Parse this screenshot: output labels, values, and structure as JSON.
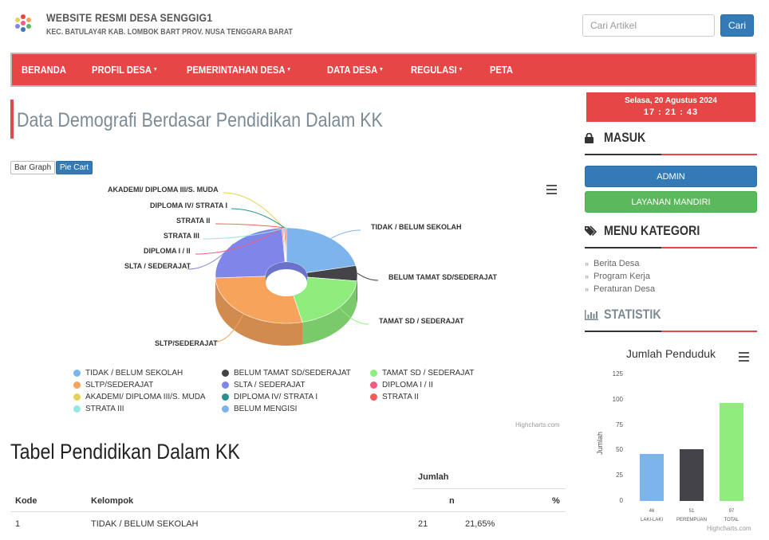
{
  "header": {
    "title": "WEBSITE RESMI DESA SENGGIG1",
    "subtitle": "KEC. BATULAY4R KAB. LOMBOK BART PROV. NUSA TENGGARA BARAT",
    "search_placeholder": "Cari Artikel",
    "search_button": "Cari"
  },
  "nav": {
    "items": [
      {
        "label": "BERANDA",
        "caret": ""
      },
      {
        "label": "PROFIL DESA",
        "caret": "▼"
      },
      {
        "label": "PEMERINTAHAN DESA",
        "caret": "▼"
      },
      {
        "label": "DATA DESA",
        "caret": "▼"
      },
      {
        "label": "REGULASI",
        "caret": "▼"
      },
      {
        "label": "PETA",
        "caret": ""
      }
    ]
  },
  "main": {
    "page_title": "Data Demografi Berdasar Pendidikan Dalam KK",
    "buttons": {
      "bar": "Bar Graph",
      "pie": "Pie Cart"
    },
    "credit": "Highcharts.com",
    "table_title": "Tabel Pendidikan Dalam KK",
    "table": {
      "group_header": "Jumlah",
      "headers": [
        "Kode",
        "Kelompok",
        "n",
        "%"
      ],
      "rows": [
        {
          "kode": "1",
          "kelompok": "TIDAK / BELUM SEKOLAH",
          "n": "21",
          "pct": "21,65%"
        }
      ]
    }
  },
  "chart_data": [
    {
      "type": "pie",
      "title": "",
      "series": [
        {
          "name": "TIDAK / BELUM SEKOLAH",
          "value": 21.65,
          "color": "#7cb5ec"
        },
        {
          "name": "BELUM TAMAT SD/SEDERAJAT",
          "value": 5.15,
          "color": "#434348"
        },
        {
          "name": "TAMAT SD / SEDERAJAT",
          "value": 19.59,
          "color": "#90ed7d"
        },
        {
          "name": "SLTP/SEDERAJAT",
          "value": 27.84,
          "color": "#f7a35c"
        },
        {
          "name": "SLTA / SEDERAJAT",
          "value": 24.74,
          "color": "#8085e9"
        },
        {
          "name": "DIPLOMA I / II",
          "value": 0.26,
          "color": "#f15c80"
        },
        {
          "name": "AKADEMI/ DIPLOMA III/S. MUDA",
          "value": 0.26,
          "color": "#e4d354"
        },
        {
          "name": "DIPLOMA IV/ STRATA I",
          "value": 0.26,
          "color": "#2b908f"
        },
        {
          "name": "STRATA II",
          "value": 0.26,
          "color": "#f45b5b"
        },
        {
          "name": "STRATA III",
          "value": 0.0,
          "color": "#91e8e1"
        },
        {
          "name": "BELUM MENGISI",
          "value": 0.0,
          "color": "#7cb5ec"
        }
      ],
      "legend": "bottom"
    },
    {
      "type": "bar",
      "title": "Jumlah Penduduk",
      "categories": [
        "LAKI-LAKI",
        "PEREMPUAN",
        "TOTAL"
      ],
      "values": [
        46,
        51,
        97
      ],
      "colors": [
        "#7cb5ec",
        "#434348",
        "#90ed7d"
      ],
      "ylabel": "Jumlah",
      "ylim": [
        0,
        125
      ],
      "yticks": [
        "0",
        "25",
        "50",
        "75",
        "100",
        "125"
      ],
      "credit": "Highcharts.com"
    }
  ],
  "sidebar": {
    "date": "Selasa, 20 Agustus 2024",
    "time": "17 : 21 : 43",
    "login_title": "MASUK",
    "admin_button": "ADMIN",
    "mandiri_button": "LAYANAN MANDIRI",
    "category_title": "MENU KATEGORI",
    "categories": [
      "Berita Desa",
      "Program Kerja",
      "Peraturan Desa"
    ],
    "stat_title": "STATISTIK"
  }
}
